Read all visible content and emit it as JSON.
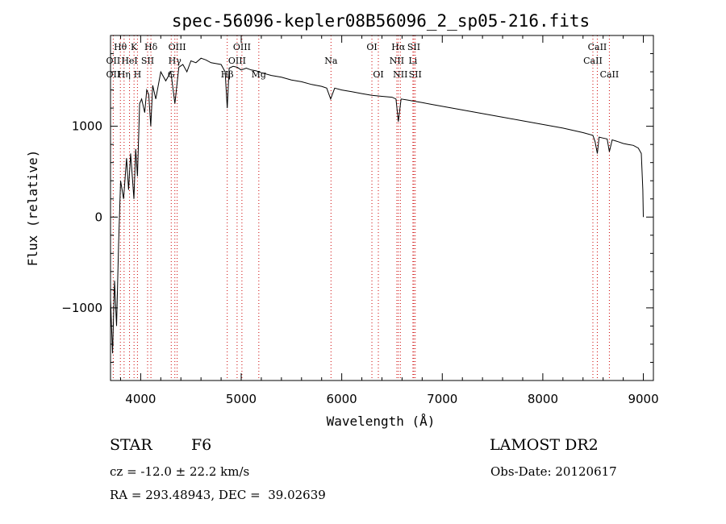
{
  "chart_data": {
    "type": "line",
    "title": "spec-56096-kepler08B56096_2_sp05-216.fits",
    "xlabel": "Wavelength (Å)",
    "ylabel": "Flux (relative)",
    "xlim": [
      3700,
      9100
    ],
    "ylim": [
      -1800,
      2000
    ],
    "grid": false,
    "x_ticks": [
      4000,
      5000,
      6000,
      7000,
      8000,
      9000
    ],
    "y_ticks": [
      -1000,
      0,
      1000
    ],
    "series": [
      {
        "x": [
          3700,
          3720,
          3740,
          3760,
          3780,
          3800,
          3830,
          3860,
          3880,
          3900,
          3920,
          3933,
          3950,
          3968,
          3990,
          4010,
          4040,
          4060,
          4080,
          4100,
          4120,
          4150,
          4200,
          4250,
          4300,
          4340,
          4380,
          4420,
          4460,
          4500,
          4550,
          4600,
          4650,
          4700,
          4750,
          4800,
          4840,
          4861,
          4880,
          4920,
          4960,
          5000,
          5050,
          5100,
          5150,
          5200,
          5300,
          5400,
          5500,
          5600,
          5700,
          5800,
          5850,
          5890,
          5930,
          6000,
          6100,
          6200,
          6300,
          6400,
          6500,
          6540,
          6563,
          6590,
          6650,
          6700,
          6800,
          6900,
          7000,
          7200,
          7400,
          7600,
          7800,
          8000,
          8200,
          8400,
          8498,
          8520,
          8542,
          8560,
          8600,
          8640,
          8662,
          8690,
          8750,
          8800,
          8850,
          8900,
          8950,
          8980,
          8995,
          9000
        ],
        "y": [
          -900,
          -1500,
          -700,
          -1200,
          -300,
          400,
          200,
          650,
          300,
          700,
          400,
          200,
          750,
          450,
          1250,
          1300,
          1150,
          1400,
          1350,
          1000,
          1450,
          1300,
          1600,
          1500,
          1600,
          1250,
          1650,
          1680,
          1600,
          1720,
          1700,
          1750,
          1730,
          1700,
          1690,
          1680,
          1600,
          1200,
          1640,
          1660,
          1650,
          1620,
          1640,
          1620,
          1610,
          1590,
          1560,
          1540,
          1510,
          1490,
          1460,
          1440,
          1420,
          1300,
          1420,
          1400,
          1380,
          1360,
          1340,
          1330,
          1320,
          1300,
          1050,
          1300,
          1290,
          1280,
          1260,
          1240,
          1220,
          1180,
          1140,
          1100,
          1060,
          1020,
          980,
          930,
          900,
          830,
          700,
          880,
          870,
          860,
          720,
          850,
          830,
          810,
          800,
          790,
          760,
          700,
          300,
          0
        ]
      }
    ],
    "line_labels": [
      {
        "label": "Hθ",
        "x": 3798,
        "row": 1
      },
      {
        "label": "K",
        "x": 3934,
        "row": 1
      },
      {
        "label": "Hδ",
        "x": 4102,
        "row": 1
      },
      {
        "label": "OIII",
        "x": 4363,
        "row": 1
      },
      {
        "label": "OIII",
        "x": 5007,
        "row": 1
      },
      {
        "label": "OI",
        "x": 6300,
        "row": 1
      },
      {
        "label": "Hα",
        "x": 6563,
        "row": 1
      },
      {
        "label": "SII",
        "x": 6717,
        "row": 1
      },
      {
        "label": "CaII",
        "x": 8542,
        "row": 1
      },
      {
        "label": "OII",
        "x": 3727,
        "row": 2
      },
      {
        "label": "HeI",
        "x": 3889,
        "row": 2
      },
      {
        "label": "SII",
        "x": 4069,
        "row": 2
      },
      {
        "label": "Hγ",
        "x": 4340,
        "row": 2
      },
      {
        "label": "OIII",
        "x": 4959,
        "row": 2
      },
      {
        "label": "Na",
        "x": 5893,
        "row": 2
      },
      {
        "label": "NII",
        "x": 6548,
        "row": 2
      },
      {
        "label": "Li",
        "x": 6708,
        "row": 2
      },
      {
        "label": "CaII",
        "x": 8498,
        "row": 2
      },
      {
        "label": "OII",
        "x": 3727,
        "row": 3
      },
      {
        "label": "Hη",
        "x": 3835,
        "row": 3
      },
      {
        "label": "H",
        "x": 3968,
        "row": 3
      },
      {
        "label": "G",
        "x": 4304,
        "row": 3
      },
      {
        "label": "Hβ",
        "x": 4861,
        "row": 3
      },
      {
        "label": "Mg",
        "x": 5175,
        "row": 3
      },
      {
        "label": "OI",
        "x": 6364,
        "row": 3
      },
      {
        "label": "NII",
        "x": 6583,
        "row": 3
      },
      {
        "label": "SII",
        "x": 6731,
        "row": 3
      },
      {
        "label": "CaII",
        "x": 8662,
        "row": 3
      }
    ],
    "line_markers": [
      3727,
      3798,
      3835,
      3889,
      3934,
      3968,
      4069,
      4102,
      4304,
      4340,
      4363,
      4861,
      4959,
      5007,
      5175,
      5893,
      6300,
      6364,
      6548,
      6563,
      6583,
      6708,
      6717,
      6731,
      8498,
      8542,
      8662
    ]
  },
  "info": {
    "object_class": "STAR",
    "subclass": "F6",
    "survey": "LAMOST DR2",
    "redshift": "cz = -12.0 ± 22.2 km/s",
    "obs_date": "Obs-Date: 20120617",
    "coords": "RA = 293.48943, DEC =  39.02639"
  },
  "colors": {
    "spectrum": "#000000",
    "markers": "#cc0000",
    "axes": "#000000"
  }
}
